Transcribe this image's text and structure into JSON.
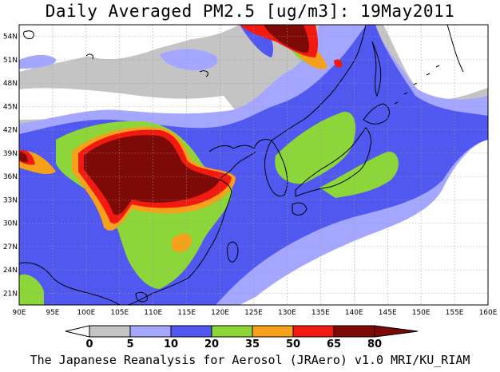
{
  "title": "Daily Averaged PM2.5 [ug/m3]: 19May2011",
  "credit": "The Japanese Reanalysis for Aerosol (JRAero) v1.0 MRI/KU_RIAM",
  "map": {
    "lon_range": [
      90,
      160
    ],
    "lat_range": [
      19.5,
      55.5
    ],
    "lon_ticks": [
      "90E",
      "95E",
      "100E",
      "105E",
      "110E",
      "115E",
      "120E",
      "125E",
      "130E",
      "135E",
      "140E",
      "145E",
      "150E",
      "155E",
      "160E"
    ],
    "lat_ticks": [
      "54N",
      "51N",
      "48N",
      "45N",
      "42N",
      "39N",
      "36N",
      "33N",
      "30N",
      "27N",
      "24N",
      "21N"
    ],
    "gridlines": true
  },
  "colorbar": {
    "labels": [
      "0",
      "5",
      "10",
      "20",
      "35",
      "50",
      "65",
      "80"
    ],
    "colors": [
      "#ffffff",
      "#c4c4c4",
      "#a4a6ff",
      "#5058f0",
      "#8cd63a",
      "#f7a01a",
      "#f21a10",
      "#7d0a06"
    ],
    "below_color": "#ffffff",
    "above_color": "#7d0a06"
  },
  "palette": {
    "land_outline": "#000000",
    "background": "#ffffff"
  }
}
